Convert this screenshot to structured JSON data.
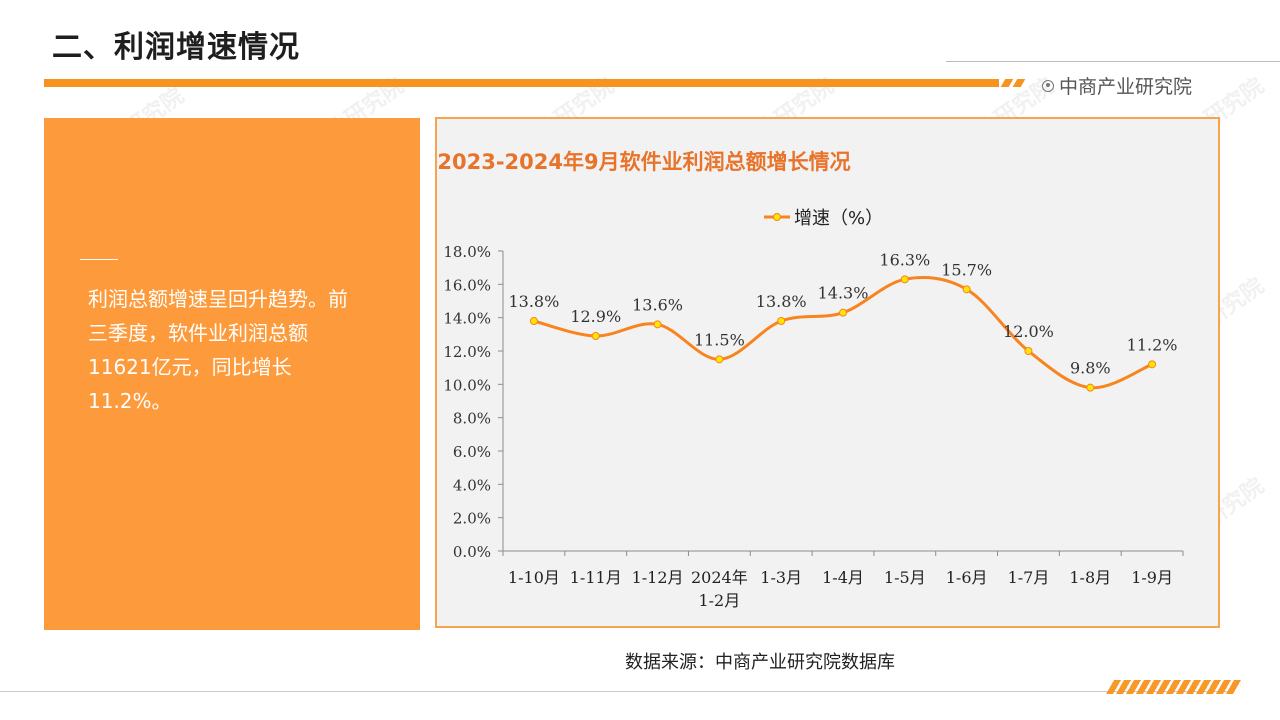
{
  "header": {
    "title": "二、利润增速情况",
    "brand": "中商产业研究院",
    "brand_icon": "target-icon"
  },
  "sidebar": {
    "text": "利润总额增速呈回升趋势。前三季度，软件业利润总额11621亿元，同比增长11.2%。"
  },
  "footer": {
    "source": "数据来源：中商产业研究院数据库"
  },
  "colors": {
    "accent": "#f7931e",
    "panel": "#fd9b3c",
    "line": "#f7841e",
    "marker": "#ffe600",
    "chart_bg": "#f2f2f2",
    "title": "#e8732a"
  },
  "chart_data": {
    "type": "line",
    "title": "2023-2024年9月软件业利润总额增长情况",
    "categories": [
      "1-10月",
      "1-11月",
      "1-12月",
      "2024年1-2月",
      "1-3月",
      "1-4月",
      "1-5月",
      "1-6月",
      "1-7月",
      "1-8月",
      "1-9月"
    ],
    "series": [
      {
        "name": "增速（%）",
        "values": [
          13.8,
          12.9,
          13.6,
          11.5,
          13.8,
          14.3,
          16.3,
          15.7,
          12.0,
          9.8,
          11.2
        ]
      }
    ],
    "data_labels": [
      "13.8%",
      "12.9%",
      "13.6%",
      "11.5%",
      "13.8%",
      "14.3%",
      "16.3%",
      "15.7%",
      "12.0%",
      "9.8%",
      "11.2%"
    ],
    "y_ticks": [
      "0.0%",
      "2.0%",
      "4.0%",
      "6.0%",
      "8.0%",
      "10.0%",
      "12.0%",
      "14.0%",
      "16.0%",
      "18.0%"
    ],
    "ylim": [
      0,
      18
    ],
    "smooth": true,
    "grid": false,
    "legend": "top"
  }
}
